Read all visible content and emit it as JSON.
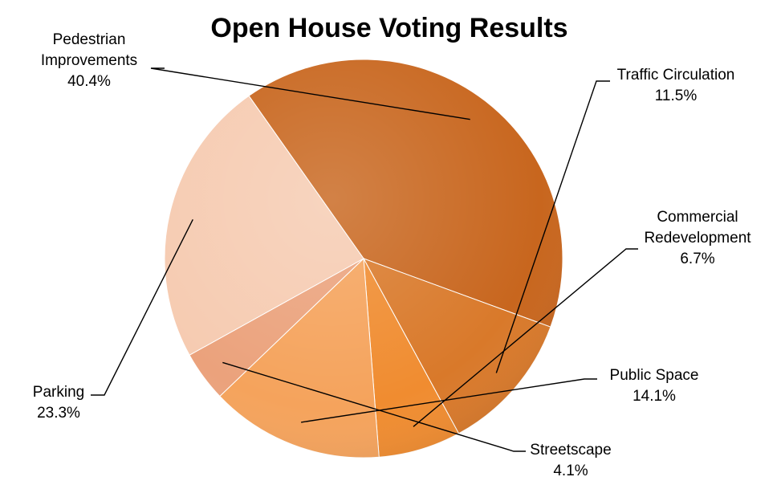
{
  "chart_data": {
    "type": "pie",
    "title": "Open House Voting Results",
    "categories": [
      "Pedestrian Improvements",
      "Traffic Circulation",
      "Commercial Redevelopment",
      "Public Space",
      "Streetscape",
      "Parking"
    ],
    "values": [
      40.4,
      11.5,
      6.7,
      14.1,
      4.1,
      23.3
    ],
    "value_labels": [
      "40.4%",
      "11.5%",
      "6.7%",
      "14.1%",
      "4.1%",
      "23.3%"
    ],
    "label_lines": [
      [
        "Pedestrian",
        "Improvements"
      ],
      [
        "Traffic Circulation"
      ],
      [
        "Commercial",
        "Redevelopment"
      ],
      [
        "Public Space"
      ],
      [
        "Streetscape"
      ],
      [
        "Parking"
      ]
    ],
    "colors": [
      "#C8661E",
      "#D9792A",
      "#F08C30",
      "#F5A35C",
      "#EBA27C",
      "#F6CBB1"
    ],
    "start_angle_deg": 234.8,
    "direction": "clockwise",
    "legend": "none"
  }
}
